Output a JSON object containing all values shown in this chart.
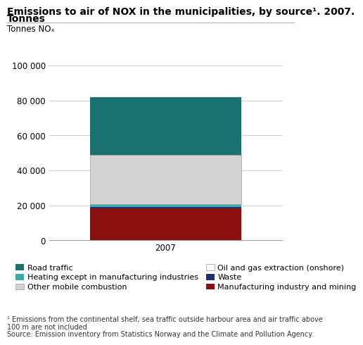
{
  "title_line1": "Emissions to air of NOX in the municipalities, by source¹. 2007.",
  "title_line2": "Tonnes",
  "ylabel_above": "Tonnes NOₓ",
  "year_label": "2007",
  "ylim": [
    0,
    100000
  ],
  "yticks": [
    0,
    20000,
    40000,
    60000,
    80000,
    100000
  ],
  "ytick_labels": [
    "0",
    "20 000",
    "40 000",
    "60 000",
    "80 000",
    "100 000"
  ],
  "bar_width": 0.65,
  "segments": [
    {
      "label": "Manufacturing industry and mining",
      "value": 18200,
      "color": "#8B1010"
    },
    {
      "label": "Waste",
      "value": 700,
      "color": "#1C2F6E"
    },
    {
      "label": "Heating except in manufacturing industries",
      "value": 1600,
      "color": "#3AADA8"
    },
    {
      "label": "Other mobile combustion",
      "value": 28200,
      "color": "#D3D3D3"
    },
    {
      "label": "Oil and gas extraction (onshore)",
      "value": 300,
      "color": "#F8F8F8"
    },
    {
      "label": "Road traffic",
      "value": 33000,
      "color": "#1B7070"
    }
  ],
  "legend_order": [
    {
      "label": "Road traffic",
      "color": "#1B7070"
    },
    {
      "label": "Heating except in manufacturing industries",
      "color": "#3AADA8"
    },
    {
      "label": "Other mobile combustion",
      "color": "#D3D3D3"
    },
    {
      "label": "Oil and gas extraction (onshore)",
      "color": "#F8F8F8"
    },
    {
      "label": "Waste",
      "color": "#1C2F6E"
    },
    {
      "label": "Manufacturing industry and mining",
      "color": "#8B1010"
    }
  ],
  "footnote": "¹ Emissions from the continental shelf, sea traffic outside harbour area and air traffic above\n100 m are not included",
  "source": "Source: Emission inventory from Statistics Norway and the Climate and Pollution Agency.",
  "bg_color": "#FFFFFF",
  "grid_color": "#CCCCCC",
  "title_fontsize": 10,
  "axis_fontsize": 8.5,
  "ylabel_fontsize": 8.5,
  "legend_fontsize": 8,
  "footnote_fontsize": 7
}
